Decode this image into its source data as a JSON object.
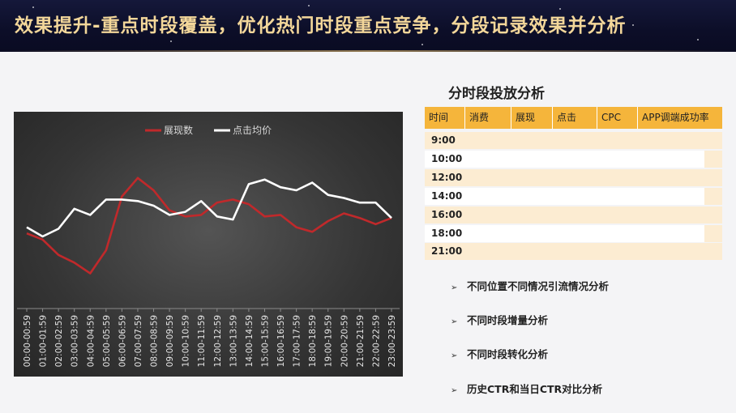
{
  "header": {
    "title": "效果提升-重点时段覆盖，优化热门时段重点竞争，分段记录效果并分析"
  },
  "chart_data": {
    "type": "line",
    "categories": [
      "00:00-00:59",
      "01:00-01:59",
      "02:00-02:59",
      "03:00-03:59",
      "04:00-04:59",
      "05:00-05:59",
      "06:00-06:59",
      "07:00-07:59",
      "08:00-08:59",
      "09:00-09:59",
      "10:00-10:59",
      "11:00-11:59",
      "12:00-12:59",
      "13:00-13:59",
      "14:00-14:59",
      "15:00-15:59",
      "16:00-16:59",
      "17:00-17:59",
      "18:00-18:59",
      "19:00-19:59",
      "20:00-20:59",
      "21:00-21:59",
      "22:00-22:59",
      "23:00-23:59"
    ],
    "series": [
      {
        "name": "展现数",
        "color": "#c0292b",
        "values": [
          42,
          38,
          28,
          23,
          16,
          31,
          66,
          78,
          70,
          57,
          53,
          54,
          62,
          64,
          61,
          53,
          54,
          46,
          43,
          50,
          55,
          52,
          48,
          52
        ]
      },
      {
        "name": "点击均价",
        "color": "#ffffff",
        "values": [
          46,
          40,
          45,
          58,
          54,
          64,
          64,
          63,
          60,
          54,
          56,
          63,
          53,
          51,
          74,
          77,
          72,
          70,
          75,
          67,
          65,
          62,
          62,
          52
        ]
      }
    ],
    "ylim": [
      0,
      100
    ],
    "legend": "top-center",
    "grid": false
  },
  "table": {
    "title": "分时段投放分析",
    "columns": [
      "时间",
      "消费",
      "展现",
      "点击",
      "CPC",
      "APP调端成功率"
    ],
    "rows": [
      "9:00",
      "10:00",
      "12:00",
      "14:00",
      "16:00",
      "18:00",
      "21:00"
    ]
  },
  "bullets": [
    "不同位置不同情况引流情况分析",
    "不同时段增量分析",
    "不同时段转化分析",
    "历史CTR和当日CTR对比分析"
  ],
  "icons": {
    "bullet": "arrow-right-icon",
    "bullet_glyph": "➢"
  }
}
